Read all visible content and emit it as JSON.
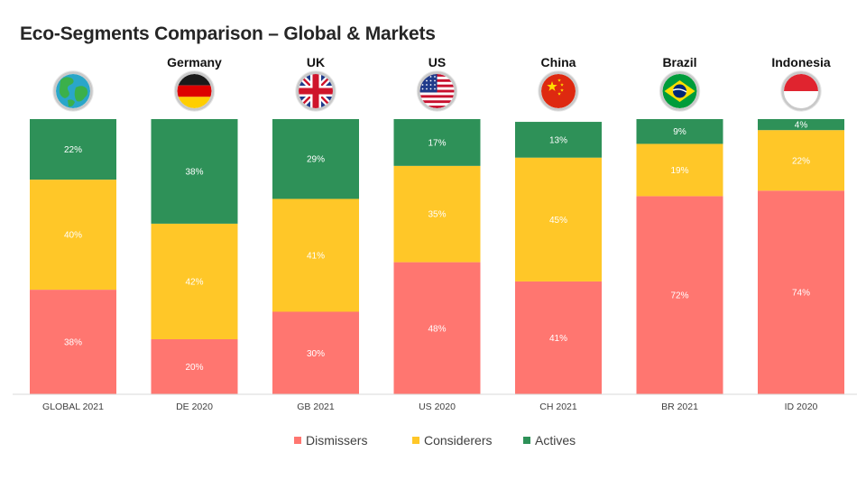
{
  "chart_data": {
    "type": "bar",
    "stacked": true,
    "title": "Eco-Segments Comparison – Global & Markets",
    "markets": [
      "",
      "Germany",
      "UK",
      "US",
      "China",
      "Brazil",
      "Indonesia"
    ],
    "icons": [
      "globe-icon",
      "germany-flag-icon",
      "uk-flag-icon",
      "us-flag-icon",
      "china-flag-icon",
      "brazil-flag-icon",
      "indonesia-flag-icon"
    ],
    "categories": [
      "GLOBAL 2021",
      "DE 2020",
      "GB 2021",
      "US 2020",
      "CH 2021",
      "BR 2021",
      "ID 2020"
    ],
    "series": [
      {
        "name": "Dismissers",
        "color": "#FF7670",
        "values": [
          38,
          20,
          30,
          48,
          41,
          72,
          74
        ]
      },
      {
        "name": "Considerers",
        "color": "#FFC728",
        "values": [
          40,
          42,
          41,
          35,
          45,
          19,
          22
        ]
      },
      {
        "name": "Actives",
        "color": "#2E9158",
        "values": [
          22,
          38,
          29,
          17,
          13,
          9,
          4
        ]
      }
    ],
    "value_suffix": "%",
    "ylim": [
      0,
      100
    ],
    "legend_position": "bottom",
    "grid": false
  }
}
